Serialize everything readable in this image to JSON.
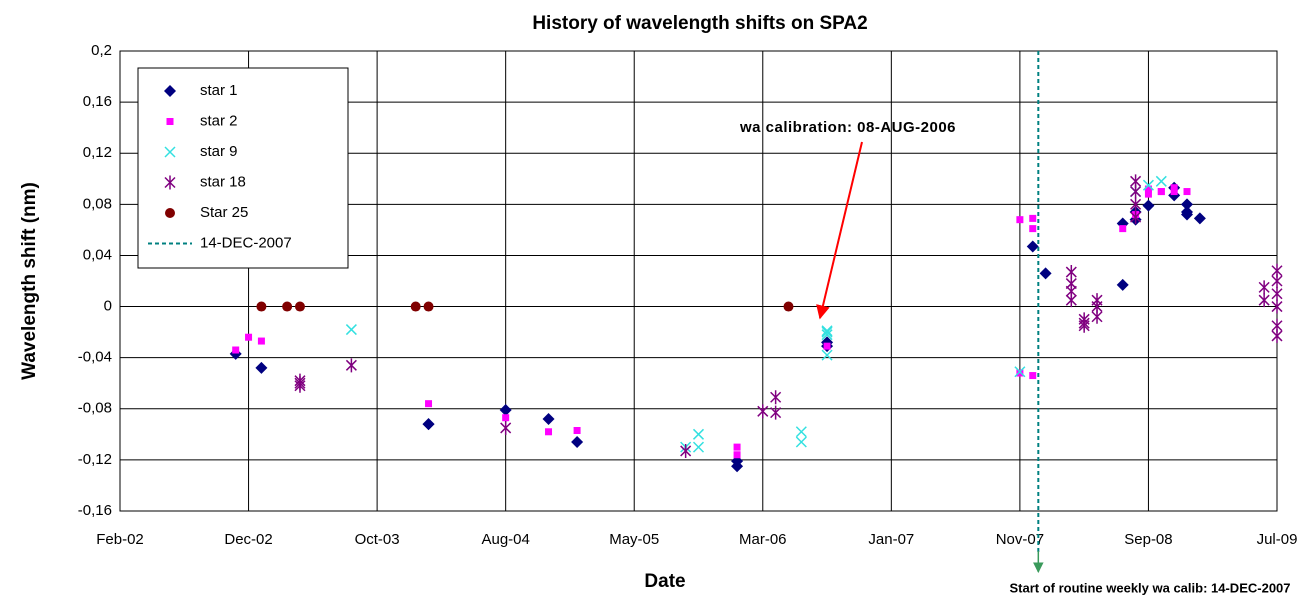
{
  "chart_data": {
    "type": "scatter",
    "title": "History of wavelength shifts on SPA2",
    "x_label": "Date",
    "y_label": "Wavelength shift (nm)",
    "xlim": [
      "2002-02",
      "2009-07"
    ],
    "xticks": [
      {
        "value": "2002-02",
        "label": "Feb-02"
      },
      {
        "value": "2002-12",
        "label": "Dec-02"
      },
      {
        "value": "2003-10",
        "label": "Oct-03"
      },
      {
        "value": "2004-08",
        "label": "Aug-04"
      },
      {
        "value": "2005-05",
        "label": "May-05"
      },
      {
        "value": "2006-03",
        "label": "Mar-06"
      },
      {
        "value": "2007-01",
        "label": "Jan-07"
      },
      {
        "value": "2007-11",
        "label": "Nov-07"
      },
      {
        "value": "2008-09",
        "label": "Sep-08"
      },
      {
        "value": "2009-07",
        "label": "Jul-09"
      }
    ],
    "ylim": [
      -0.16,
      0.2
    ],
    "yticks": [
      {
        "value": -0.16,
        "label": "-0,16"
      },
      {
        "value": -0.12,
        "label": "-0,12"
      },
      {
        "value": -0.08,
        "label": "-0,08"
      },
      {
        "value": -0.04,
        "label": "-0,04"
      },
      0,
      {
        "value": 0.04,
        "label": "0,04"
      },
      {
        "value": 0.08,
        "label": "0,08"
      },
      {
        "value": 0.12,
        "label": "0,12"
      },
      {
        "value": 0.16,
        "label": "0,16"
      },
      {
        "value": 0.2,
        "label": "0,2"
      }
    ],
    "grid": true,
    "legend": "upper left",
    "series": [
      {
        "name": "star 1",
        "color": "#000080",
        "marker": "diamond",
        "x": [
          "2002-11",
          "2003-01",
          "2004-02",
          "2004-02",
          "2004-08",
          "2004-11",
          "2005-01",
          "2006-01",
          "2006-01",
          "2006-08",
          "2006-08",
          "2007-12",
          "2008-01",
          "2008-07",
          "2008-07",
          "2008-08",
          "2008-08",
          "2008-09",
          "2008-11",
          "2008-11",
          "2008-12",
          "2008-12",
          "2008-12",
          "2009-01"
        ],
        "values": [
          -0.037,
          -0.048,
          -0.092,
          -0.092,
          -0.081,
          -0.088,
          -0.106,
          -0.121,
          -0.125,
          -0.028,
          -0.031,
          0.047,
          0.026,
          0.017,
          0.065,
          0.068,
          0.074,
          0.079,
          0.093,
          0.087,
          0.08,
          0.074,
          0.072,
          0.069
        ]
      },
      {
        "name": "star 2",
        "color": "#ff00ff",
        "marker": "square",
        "x": [
          "2002-11",
          "2002-12",
          "2003-01",
          "2004-02",
          "2004-08",
          "2004-11",
          "2005-01",
          "2006-01",
          "2006-01",
          "2006-08",
          "2007-11",
          "2007-12",
          "2007-11",
          "2007-12",
          "2007-12",
          "2008-07",
          "2008-08",
          "2008-09",
          "2008-09",
          "2008-10",
          "2008-10",
          "2008-11",
          "2008-11",
          "2008-12"
        ],
        "values": [
          -0.034,
          -0.024,
          -0.027,
          -0.076,
          -0.087,
          -0.098,
          -0.097,
          -0.11,
          -0.116,
          -0.031,
          -0.052,
          -0.054,
          0.068,
          0.069,
          0.061,
          0.061,
          0.072,
          0.088,
          0.092,
          0.09,
          0.09,
          0.093,
          0.09,
          0.09
        ]
      },
      {
        "name": "star 9",
        "color": "#33e0e0",
        "marker": "x",
        "x": [
          "2003-08",
          "2005-09",
          "2005-10",
          "2005-10",
          "2006-06",
          "2006-06",
          "2006-08",
          "2006-08",
          "2006-08",
          "2006-08",
          "2007-11",
          "2008-08",
          "2008-09",
          "2008-10"
        ],
        "values": [
          -0.018,
          -0.11,
          -0.1,
          -0.11,
          -0.098,
          -0.106,
          -0.02,
          -0.022,
          -0.019,
          -0.038,
          -0.051,
          0.09,
          0.095,
          0.098
        ]
      },
      {
        "name": "star 18",
        "color": "#800080",
        "marker": "asterisk",
        "x": [
          "2003-04",
          "2003-04",
          "2003-04",
          "2003-08",
          "2004-08",
          "2005-09",
          "2006-03",
          "2006-04",
          "2006-04",
          "2008-03",
          "2008-03",
          "2008-03",
          "2008-03",
          "2008-04",
          "2008-04",
          "2008-04",
          "2008-05",
          "2008-05",
          "2008-05",
          "2008-08",
          "2008-08",
          "2008-08",
          "2008-08",
          "2009-06",
          "2009-06",
          "2009-07",
          "2009-07",
          "2009-07",
          "2009-07",
          "2009-07",
          "2009-07"
        ],
        "values": [
          -0.06,
          -0.058,
          -0.062,
          -0.046,
          -0.095,
          -0.113,
          -0.082,
          -0.071,
          -0.083,
          0.027,
          0.018,
          0.012,
          0.005,
          -0.013,
          -0.015,
          -0.01,
          -0.008,
          0,
          0.005,
          0.07,
          0.08,
          0.09,
          0.098,
          0.015,
          0.005,
          0.028,
          0.02,
          0.01,
          0,
          -0.015,
          -0.023
        ]
      },
      {
        "name": "Star 25",
        "color": "#800000",
        "marker": "circle",
        "x": [
          "2003-01",
          "2003-03",
          "2003-04",
          "2004-01",
          "2004-02",
          "2006-05"
        ],
        "values": [
          0,
          0,
          0,
          0,
          0,
          0
        ]
      },
      {
        "name": "14-DEC-2007",
        "color": "#008080",
        "marker": "vline",
        "x": [
          "2007-12-14"
        ]
      }
    ],
    "annotations": [
      {
        "text": "wa calibration: 08-AUG-2006",
        "color": "#ff0000"
      },
      {
        "text": "Start of routine weekly wa calib: 14-DEC-2007",
        "color": "#3a9a5b"
      }
    ]
  }
}
